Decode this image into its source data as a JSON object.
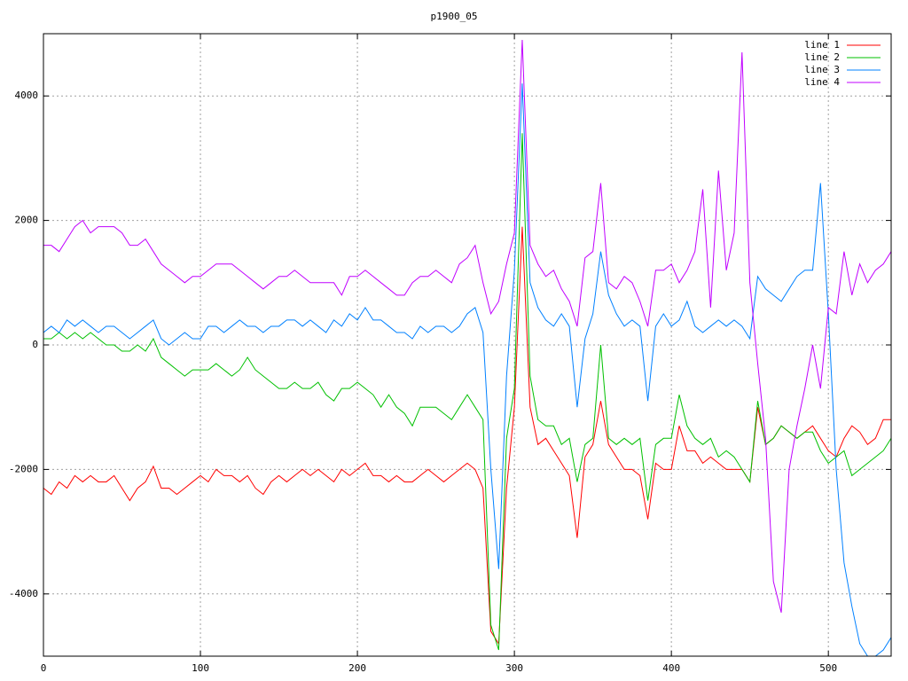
{
  "chart_data": {
    "type": "line",
    "title": "p1900_05",
    "x": [
      0,
      5,
      10,
      15,
      20,
      25,
      30,
      35,
      40,
      45,
      50,
      55,
      60,
      65,
      70,
      75,
      80,
      85,
      90,
      95,
      100,
      105,
      110,
      115,
      120,
      125,
      130,
      135,
      140,
      145,
      150,
      155,
      160,
      165,
      170,
      175,
      180,
      185,
      190,
      195,
      200,
      205,
      210,
      215,
      220,
      225,
      230,
      235,
      240,
      245,
      250,
      255,
      260,
      265,
      270,
      275,
      280,
      285,
      290,
      295,
      300,
      305,
      310,
      315,
      320,
      325,
      330,
      335,
      340,
      345,
      350,
      355,
      360,
      365,
      370,
      375,
      380,
      385,
      390,
      395,
      400,
      405,
      410,
      415,
      420,
      425,
      430,
      435,
      440,
      445,
      450,
      455,
      460,
      465,
      470,
      475,
      480,
      485,
      490,
      495,
      500,
      505,
      510,
      515,
      520,
      525,
      530,
      535,
      540
    ],
    "series": [
      {
        "name": "line 1",
        "color": "#ff0000",
        "values": [
          -2300,
          -2400,
          -2200,
          -2300,
          -2100,
          -2200,
          -2100,
          -2200,
          -2200,
          -2100,
          -2300,
          -2500,
          -2300,
          -2200,
          -1950,
          -2300,
          -2300,
          -2400,
          -2300,
          -2200,
          -2100,
          -2200,
          -2000,
          -2100,
          -2100,
          -2200,
          -2100,
          -2300,
          -2400,
          -2200,
          -2100,
          -2200,
          -2100,
          -2000,
          -2100,
          -2000,
          -2100,
          -2200,
          -2000,
          -2100,
          -2000,
          -1900,
          -2100,
          -2100,
          -2200,
          -2100,
          -2200,
          -2200,
          -2100,
          -2000,
          -2100,
          -2200,
          -2100,
          -2000,
          -1900,
          -2000,
          -2300,
          -4600,
          -4800,
          -2300,
          -1000,
          1900,
          -1000,
          -1600,
          -1500,
          -1700,
          -1900,
          -2100,
          -3100,
          -1800,
          -1600,
          -900,
          -1600,
          -1800,
          -2000,
          -2000,
          -2100,
          -2800,
          -1900,
          -2000,
          -2000,
          -1300,
          -1700,
          -1700,
          -1900,
          -1800,
          -1900,
          -2000,
          -2000,
          -2000,
          -2200,
          -1000,
          -1600,
          -1500,
          -1300,
          -1400,
          -1500,
          -1400,
          -1300,
          -1500,
          -1700,
          -1800,
          -1500,
          -1300,
          -1400,
          -1600,
          -1500,
          -1200,
          -1200
        ]
      },
      {
        "name": "line 2",
        "color": "#00c000",
        "values": [
          100,
          100,
          200,
          100,
          200,
          100,
          200,
          100,
          0,
          0,
          -100,
          -100,
          0,
          -100,
          100,
          -200,
          -300,
          -400,
          -500,
          -400,
          -400,
          -400,
          -300,
          -400,
          -500,
          -400,
          -200,
          -400,
          -500,
          -600,
          -700,
          -700,
          -600,
          -700,
          -700,
          -600,
          -800,
          -900,
          -700,
          -700,
          -600,
          -700,
          -800,
          -1000,
          -800,
          -1000,
          -1100,
          -1300,
          -1000,
          -1000,
          -1000,
          -1100,
          -1200,
          -1000,
          -800,
          -1000,
          -1200,
          -4500,
          -4900,
          -1500,
          -700,
          3400,
          -500,
          -1200,
          -1300,
          -1300,
          -1600,
          -1500,
          -2200,
          -1600,
          -1500,
          0,
          -1500,
          -1600,
          -1500,
          -1600,
          -1500,
          -2500,
          -1600,
          -1500,
          -1500,
          -800,
          -1300,
          -1500,
          -1600,
          -1500,
          -1800,
          -1700,
          -1800,
          -2000,
          -2200,
          -900,
          -1600,
          -1500,
          -1300,
          -1400,
          -1500,
          -1400,
          -1400,
          -1700,
          -1900,
          -1800,
          -1700,
          -2100,
          -2000,
          -1900,
          -1800,
          -1700,
          -1500
        ]
      },
      {
        "name": "line 3",
        "color": "#0080ff",
        "values": [
          200,
          300,
          200,
          400,
          300,
          400,
          300,
          200,
          300,
          300,
          200,
          100,
          200,
          300,
          400,
          100,
          0,
          100,
          200,
          100,
          100,
          300,
          300,
          200,
          300,
          400,
          300,
          300,
          200,
          300,
          300,
          400,
          400,
          300,
          400,
          300,
          200,
          400,
          300,
          500,
          400,
          600,
          400,
          400,
          300,
          200,
          200,
          100,
          300,
          200,
          300,
          300,
          200,
          300,
          500,
          600,
          200,
          -2000,
          -3600,
          -500,
          1200,
          4200,
          1000,
          600,
          400,
          300,
          500,
          300,
          -1000,
          100,
          500,
          1500,
          800,
          500,
          300,
          400,
          300,
          -900,
          300,
          500,
          300,
          400,
          700,
          300,
          200,
          300,
          400,
          300,
          400,
          300,
          100,
          1100,
          900,
          800,
          700,
          900,
          1100,
          1200,
          1200,
          2600,
          500,
          -2000,
          -3500,
          -4200,
          -4800,
          -5000,
          -5000,
          -4900,
          -4700
        ]
      },
      {
        "name": "line 4",
        "color": "#c000ff",
        "values": [
          1600,
          1600,
          1500,
          1700,
          1900,
          2000,
          1800,
          1900,
          1900,
          1900,
          1800,
          1600,
          1600,
          1700,
          1500,
          1300,
          1200,
          1100,
          1000,
          1100,
          1100,
          1200,
          1300,
          1300,
          1300,
          1200,
          1100,
          1000,
          900,
          1000,
          1100,
          1100,
          1200,
          1100,
          1000,
          1000,
          1000,
          1000,
          800,
          1100,
          1100,
          1200,
          1100,
          1000,
          900,
          800,
          800,
          1000,
          1100,
          1100,
          1200,
          1100,
          1000,
          1300,
          1400,
          1600,
          1000,
          500,
          700,
          1300,
          1800,
          4900,
          1600,
          1300,
          1100,
          1200,
          900,
          700,
          300,
          1400,
          1500,
          2600,
          1000,
          900,
          1100,
          1000,
          700,
          300,
          1200,
          1200,
          1300,
          1000,
          1200,
          1500,
          2500,
          600,
          2800,
          1200,
          1800,
          4700,
          1000,
          -300,
          -1500,
          -3800,
          -4300,
          -2000,
          -1300,
          -700,
          0,
          -700,
          600,
          500,
          1500,
          800,
          1300,
          1000,
          1200,
          1300,
          1500
        ]
      }
    ],
    "xlim": [
      0,
      540
    ],
    "ylim": [
      -5000,
      5000
    ],
    "xticks": [
      0,
      100,
      200,
      300,
      400,
      500
    ],
    "yticks": [
      -4000,
      -2000,
      0,
      2000,
      4000
    ],
    "grid": true,
    "legend": "top-right"
  }
}
